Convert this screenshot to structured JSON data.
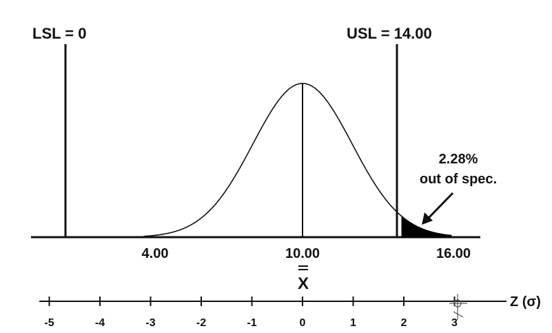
{
  "labels": {
    "lsl": "LSL = 0",
    "usl": "USL = 14.00",
    "callout_line1": "2.28%",
    "callout_line2": "out of spec.",
    "x_mean_symbol": "X",
    "z_axis": "Z (σ)"
  },
  "x_axis": {
    "ticks": [
      "4.00",
      "10.00",
      "16.00"
    ]
  },
  "z_axis": {
    "ticks": [
      "-5",
      "-4",
      "-3",
      "-2",
      "-1",
      "0",
      "1",
      "2",
      "3"
    ]
  },
  "distribution": {
    "mean": 10.0,
    "sigma": 2.0,
    "lsl": 0,
    "usl": 14.0,
    "out_of_spec_percent": 2.28
  },
  "colors": {
    "ink": "#111111",
    "background": "#ffffff"
  }
}
